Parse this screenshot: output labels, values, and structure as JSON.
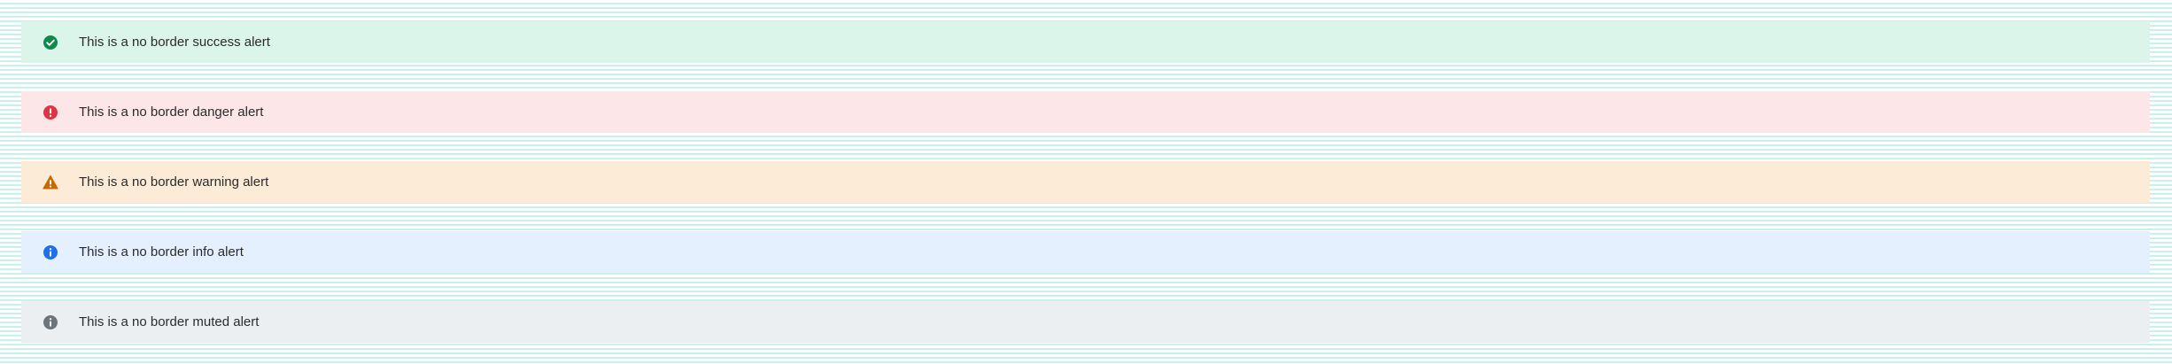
{
  "alerts": [
    {
      "variant": "success",
      "icon": "check-circle-icon",
      "text": "This is a no border success alert",
      "background": "#dcf5ea",
      "icon_color": "#0e8a4a"
    },
    {
      "variant": "danger",
      "icon": "exclamation-circle-icon",
      "text": "This is a no border danger alert",
      "background": "#fce6e8",
      "icon_color": "#dc3545"
    },
    {
      "variant": "warning",
      "icon": "warning-triangle-icon",
      "text": "This is a no border warning alert",
      "background": "#fbebd7",
      "icon_color": "#c76a05"
    },
    {
      "variant": "info",
      "icon": "info-circle-icon",
      "text": "This is a no border info alert",
      "background": "#e5f0ff",
      "icon_color": "#1f6feb"
    },
    {
      "variant": "muted",
      "icon": "info-circle-icon",
      "text": "This is a no border muted alert",
      "background": "#eceff2",
      "icon_color": "#6c757d"
    }
  ]
}
